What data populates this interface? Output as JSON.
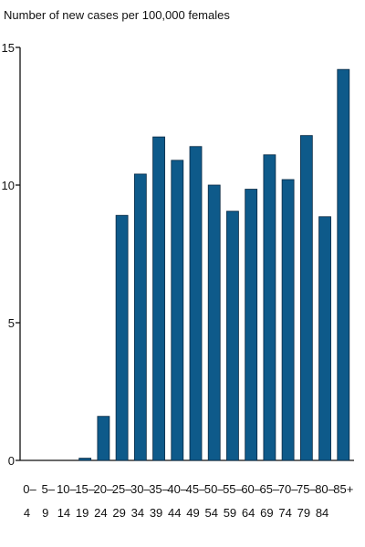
{
  "chart_data": {
    "type": "bar",
    "ylabel": "Number of new cases per 100,000 females",
    "xlabel": "",
    "ylim": [
      0,
      15
    ],
    "yticks": [
      0,
      5,
      10,
      15
    ],
    "categories": [
      [
        "0–",
        "4"
      ],
      [
        "5–",
        "9"
      ],
      [
        "10–",
        "14"
      ],
      [
        "15–",
        "19"
      ],
      [
        "20–",
        "24"
      ],
      [
        "25–",
        "29"
      ],
      [
        "30–",
        "34"
      ],
      [
        "35–",
        "39"
      ],
      [
        "40–",
        "44"
      ],
      [
        "45–",
        "49"
      ],
      [
        "50–",
        "54"
      ],
      [
        "55–",
        "59"
      ],
      [
        "60–",
        "64"
      ],
      [
        "65–",
        "69"
      ],
      [
        "70–",
        "74"
      ],
      [
        "75–",
        "79"
      ],
      [
        "80–",
        "84"
      ],
      [
        "85+",
        ""
      ]
    ],
    "values": [
      0,
      0,
      0,
      0.08,
      1.6,
      8.9,
      10.4,
      11.75,
      10.9,
      11.4,
      10.0,
      9.05,
      9.85,
      11.1,
      10.2,
      11.8,
      8.85,
      14.2
    ],
    "bar_color": "#0e5a8a",
    "grid": false,
    "legend": "none"
  }
}
